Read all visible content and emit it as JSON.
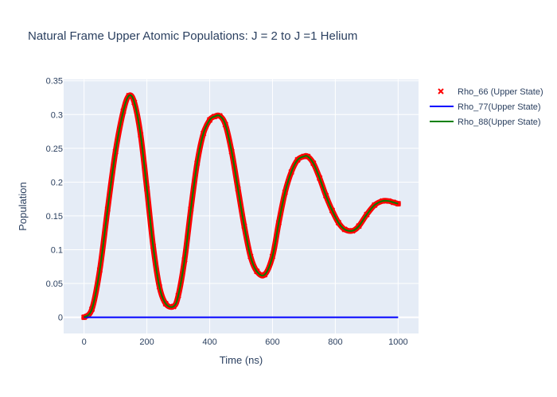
{
  "chart_data": {
    "type": "line",
    "title": "Natural Frame Upper Atomic Populations: J = 2 to J =1 Helium",
    "xlabel": "Time (ns)",
    "ylabel": "Population",
    "xlim": [
      -65,
      1065
    ],
    "ylim": [
      -0.024,
      0.352
    ],
    "x_ticks": [
      0,
      200,
      400,
      600,
      800,
      1000
    ],
    "x_tick_labels": [
      "0",
      "200",
      "400",
      "600",
      "800",
      "1000"
    ],
    "y_ticks": [
      0,
      0.05,
      0.1,
      0.15,
      0.2,
      0.25,
      0.3,
      0.35
    ],
    "y_tick_labels": [
      "0",
      "0.05",
      "0.1",
      "0.15",
      "0.2",
      "0.25",
      "0.3",
      "0.35"
    ],
    "grid": true,
    "legend_position": "top-right",
    "series": [
      {
        "name": "Rho_66 (Upper State)",
        "mode": "markers",
        "marker": "x",
        "color": "#ff0000",
        "x": [
          0,
          25,
          50,
          75,
          100,
          125,
          143,
          160,
          180,
          200,
          220,
          240,
          260,
          285,
          300,
          320,
          340,
          360,
          380,
          400,
          415,
          432,
          450,
          470,
          490,
          510,
          530,
          550,
          575,
          600,
          620,
          640,
          660,
          680,
          700,
          712,
          730,
          750,
          770,
          790,
          810,
          830,
          855,
          875,
          900,
          925,
          950,
          970,
          985,
          1000
        ],
        "y": [
          0,
          0.012,
          0.07,
          0.16,
          0.245,
          0.305,
          0.328,
          0.318,
          0.27,
          0.19,
          0.105,
          0.045,
          0.02,
          0.016,
          0.032,
          0.085,
          0.16,
          0.228,
          0.272,
          0.292,
          0.297,
          0.298,
          0.285,
          0.245,
          0.19,
          0.135,
          0.09,
          0.068,
          0.063,
          0.09,
          0.14,
          0.185,
          0.215,
          0.233,
          0.238,
          0.238,
          0.228,
          0.206,
          0.18,
          0.158,
          0.14,
          0.13,
          0.128,
          0.135,
          0.152,
          0.166,
          0.172,
          0.172,
          0.17,
          0.168
        ]
      },
      {
        "name": "Rho_77(Upper State)",
        "mode": "lines",
        "color": "#0000ff",
        "x": [
          0,
          1000
        ],
        "y": [
          0,
          0
        ]
      },
      {
        "name": "Rho_88(Upper State)",
        "mode": "lines",
        "color": "#008000",
        "x": [
          0,
          25,
          50,
          75,
          100,
          125,
          143,
          160,
          180,
          200,
          220,
          240,
          260,
          285,
          300,
          320,
          340,
          360,
          380,
          400,
          415,
          432,
          450,
          470,
          490,
          510,
          530,
          550,
          575,
          600,
          620,
          640,
          660,
          680,
          700,
          712,
          730,
          750,
          770,
          790,
          810,
          830,
          855,
          875,
          900,
          925,
          950,
          970,
          985,
          1000
        ],
        "y": [
          0,
          0.012,
          0.07,
          0.16,
          0.245,
          0.305,
          0.328,
          0.318,
          0.27,
          0.19,
          0.105,
          0.045,
          0.02,
          0.016,
          0.032,
          0.085,
          0.16,
          0.228,
          0.272,
          0.292,
          0.297,
          0.298,
          0.285,
          0.245,
          0.19,
          0.135,
          0.09,
          0.068,
          0.063,
          0.09,
          0.14,
          0.185,
          0.215,
          0.233,
          0.238,
          0.238,
          0.228,
          0.206,
          0.18,
          0.158,
          0.14,
          0.13,
          0.128,
          0.135,
          0.152,
          0.166,
          0.172,
          0.172,
          0.17,
          0.168
        ]
      }
    ]
  },
  "colors": {
    "plot_background": "#e5ecf6",
    "grid": "#ffffff",
    "text": "#2a3f5f"
  }
}
